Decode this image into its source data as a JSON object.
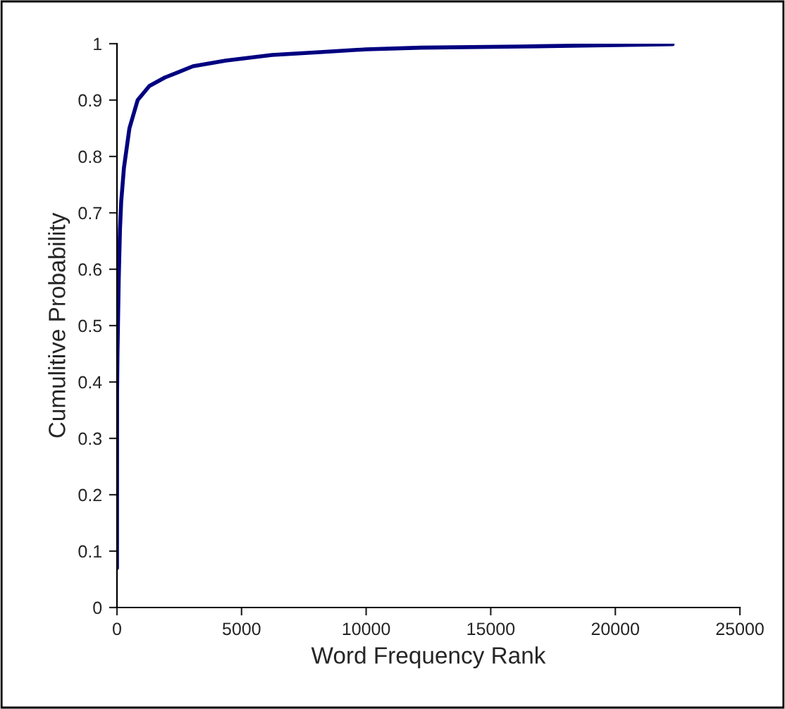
{
  "chart_data": {
    "type": "line",
    "xlabel": "Word Frequency Rank",
    "ylabel": "Cumulitive Probability",
    "x": [
      1,
      5,
      20,
      70,
      120,
      170,
      280,
      500,
      830,
      1300,
      1920,
      3050,
      4360,
      6220,
      8140,
      10000,
      12200,
      16200,
      20500,
      22300
    ],
    "series": [
      {
        "color": "#000080",
        "values": [
          0.07,
          0.38,
          0.45,
          0.58,
          0.67,
          0.72,
          0.78,
          0.85,
          0.9,
          0.925,
          0.94,
          0.96,
          0.97,
          0.98,
          0.985,
          0.99,
          0.993,
          0.995,
          0.998,
          0.999
        ]
      }
    ],
    "xlim": [
      0,
      25000
    ],
    "xticks": [
      0,
      5000,
      10000,
      15000,
      20000,
      25000
    ],
    "ylim": [
      0,
      1
    ],
    "yticks": [
      0,
      0.1,
      0.2,
      0.3,
      0.4,
      0.5,
      0.6,
      0.7,
      0.8,
      0.9,
      1
    ],
    "grid": false,
    "legend": false,
    "marker": "none",
    "line_style": "solid"
  }
}
